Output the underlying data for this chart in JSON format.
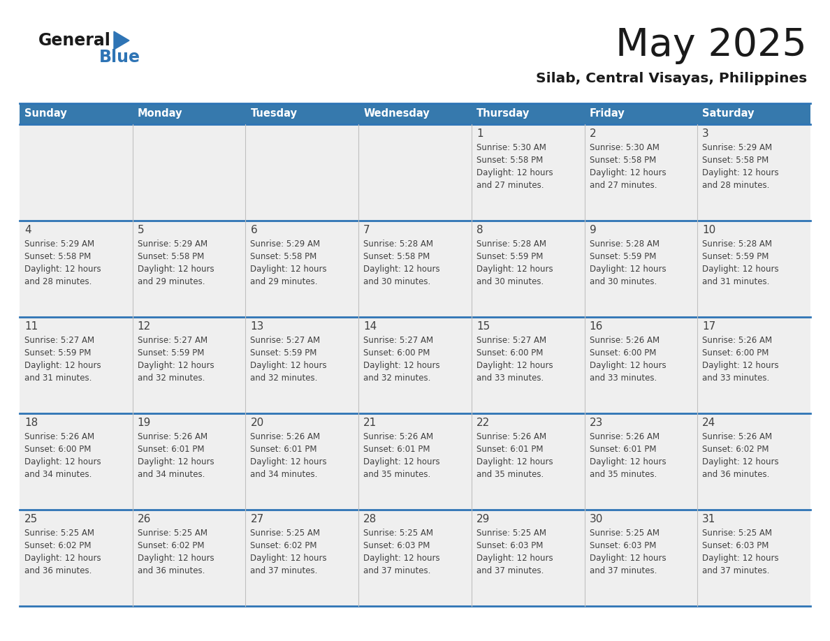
{
  "title": "May 2025",
  "subtitle": "Silab, Central Visayas, Philippines",
  "days_of_week": [
    "Sunday",
    "Monday",
    "Tuesday",
    "Wednesday",
    "Thursday",
    "Friday",
    "Saturday"
  ],
  "header_bg": "#3679AD",
  "header_text_color": "#FFFFFF",
  "row_bg": "#EFEFEF",
  "cell_text_color": "#404040",
  "day_num_color": "#404040",
  "border_color": "#2E74B5",
  "row_line_color": "#2E74B5",
  "col_line_color": "#C0C0C0",
  "logo_general_color": "#1A1A1A",
  "logo_blue_color": "#2E74B5",
  "calendar_data": [
    [
      {
        "day": null,
        "info": null
      },
      {
        "day": null,
        "info": null
      },
      {
        "day": null,
        "info": null
      },
      {
        "day": null,
        "info": null
      },
      {
        "day": 1,
        "info": "Sunrise: 5:30 AM\nSunset: 5:58 PM\nDaylight: 12 hours\nand 27 minutes."
      },
      {
        "day": 2,
        "info": "Sunrise: 5:30 AM\nSunset: 5:58 PM\nDaylight: 12 hours\nand 27 minutes."
      },
      {
        "day": 3,
        "info": "Sunrise: 5:29 AM\nSunset: 5:58 PM\nDaylight: 12 hours\nand 28 minutes."
      }
    ],
    [
      {
        "day": 4,
        "info": "Sunrise: 5:29 AM\nSunset: 5:58 PM\nDaylight: 12 hours\nand 28 minutes."
      },
      {
        "day": 5,
        "info": "Sunrise: 5:29 AM\nSunset: 5:58 PM\nDaylight: 12 hours\nand 29 minutes."
      },
      {
        "day": 6,
        "info": "Sunrise: 5:29 AM\nSunset: 5:58 PM\nDaylight: 12 hours\nand 29 minutes."
      },
      {
        "day": 7,
        "info": "Sunrise: 5:28 AM\nSunset: 5:58 PM\nDaylight: 12 hours\nand 30 minutes."
      },
      {
        "day": 8,
        "info": "Sunrise: 5:28 AM\nSunset: 5:59 PM\nDaylight: 12 hours\nand 30 minutes."
      },
      {
        "day": 9,
        "info": "Sunrise: 5:28 AM\nSunset: 5:59 PM\nDaylight: 12 hours\nand 30 minutes."
      },
      {
        "day": 10,
        "info": "Sunrise: 5:28 AM\nSunset: 5:59 PM\nDaylight: 12 hours\nand 31 minutes."
      }
    ],
    [
      {
        "day": 11,
        "info": "Sunrise: 5:27 AM\nSunset: 5:59 PM\nDaylight: 12 hours\nand 31 minutes."
      },
      {
        "day": 12,
        "info": "Sunrise: 5:27 AM\nSunset: 5:59 PM\nDaylight: 12 hours\nand 32 minutes."
      },
      {
        "day": 13,
        "info": "Sunrise: 5:27 AM\nSunset: 5:59 PM\nDaylight: 12 hours\nand 32 minutes."
      },
      {
        "day": 14,
        "info": "Sunrise: 5:27 AM\nSunset: 6:00 PM\nDaylight: 12 hours\nand 32 minutes."
      },
      {
        "day": 15,
        "info": "Sunrise: 5:27 AM\nSunset: 6:00 PM\nDaylight: 12 hours\nand 33 minutes."
      },
      {
        "day": 16,
        "info": "Sunrise: 5:26 AM\nSunset: 6:00 PM\nDaylight: 12 hours\nand 33 minutes."
      },
      {
        "day": 17,
        "info": "Sunrise: 5:26 AM\nSunset: 6:00 PM\nDaylight: 12 hours\nand 33 minutes."
      }
    ],
    [
      {
        "day": 18,
        "info": "Sunrise: 5:26 AM\nSunset: 6:00 PM\nDaylight: 12 hours\nand 34 minutes."
      },
      {
        "day": 19,
        "info": "Sunrise: 5:26 AM\nSunset: 6:01 PM\nDaylight: 12 hours\nand 34 minutes."
      },
      {
        "day": 20,
        "info": "Sunrise: 5:26 AM\nSunset: 6:01 PM\nDaylight: 12 hours\nand 34 minutes."
      },
      {
        "day": 21,
        "info": "Sunrise: 5:26 AM\nSunset: 6:01 PM\nDaylight: 12 hours\nand 35 minutes."
      },
      {
        "day": 22,
        "info": "Sunrise: 5:26 AM\nSunset: 6:01 PM\nDaylight: 12 hours\nand 35 minutes."
      },
      {
        "day": 23,
        "info": "Sunrise: 5:26 AM\nSunset: 6:01 PM\nDaylight: 12 hours\nand 35 minutes."
      },
      {
        "day": 24,
        "info": "Sunrise: 5:26 AM\nSunset: 6:02 PM\nDaylight: 12 hours\nand 36 minutes."
      }
    ],
    [
      {
        "day": 25,
        "info": "Sunrise: 5:25 AM\nSunset: 6:02 PM\nDaylight: 12 hours\nand 36 minutes."
      },
      {
        "day": 26,
        "info": "Sunrise: 5:25 AM\nSunset: 6:02 PM\nDaylight: 12 hours\nand 36 minutes."
      },
      {
        "day": 27,
        "info": "Sunrise: 5:25 AM\nSunset: 6:02 PM\nDaylight: 12 hours\nand 37 minutes."
      },
      {
        "day": 28,
        "info": "Sunrise: 5:25 AM\nSunset: 6:03 PM\nDaylight: 12 hours\nand 37 minutes."
      },
      {
        "day": 29,
        "info": "Sunrise: 5:25 AM\nSunset: 6:03 PM\nDaylight: 12 hours\nand 37 minutes."
      },
      {
        "day": 30,
        "info": "Sunrise: 5:25 AM\nSunset: 6:03 PM\nDaylight: 12 hours\nand 37 minutes."
      },
      {
        "day": 31,
        "info": "Sunrise: 5:25 AM\nSunset: 6:03 PM\nDaylight: 12 hours\nand 37 minutes."
      }
    ]
  ]
}
